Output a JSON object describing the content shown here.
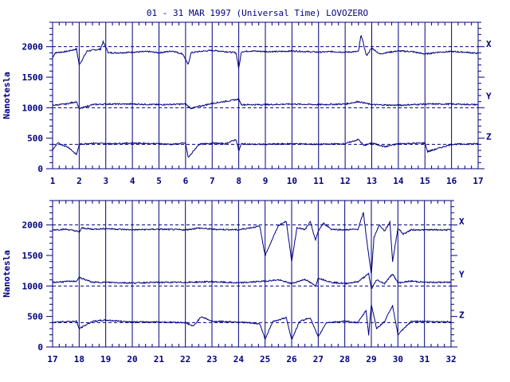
{
  "chart_data": [
    {
      "type": "line",
      "title": "01 - 31 MAR 1997 (Universal Time) LOVOZERO",
      "ylabel": "Nanotesla",
      "xlabel": "",
      "x_ticks": [
        "1",
        "2",
        "3",
        "4",
        "5",
        "6",
        "7",
        "8",
        "9",
        "10",
        "11",
        "12",
        "13",
        "14",
        "15",
        "16",
        "17"
      ],
      "xlim": [
        1,
        17
      ],
      "y_ticks": [
        "0",
        "500",
        "1000",
        "1500",
        "2000"
      ],
      "ylim": [
        0,
        2400
      ],
      "grid": "vertical lines at each day",
      "reference_lines": [
        2000,
        1000,
        400
      ],
      "series": [
        {
          "name": "X",
          "baseline": 1920,
          "x": [
            1.0,
            1.1,
            1.5,
            1.9,
            2.0,
            2.3,
            2.8,
            2.9,
            3.1,
            3.5,
            4.0,
            4.6,
            5.0,
            5.5,
            5.9,
            6.1,
            6.2,
            6.5,
            7.0,
            7.5,
            7.9,
            8.0,
            8.1,
            8.5,
            9.0,
            9.5,
            10.0,
            10.5,
            11.0,
            11.5,
            12.0,
            12.5,
            12.6,
            12.8,
            13.0,
            13.3,
            13.5,
            14.0,
            14.5,
            15.0,
            15.5,
            16.0,
            16.5,
            17.0
          ],
          "y": [
            1820,
            1900,
            1920,
            1960,
            1700,
            1930,
            1960,
            2080,
            1900,
            1900,
            1910,
            1920,
            1900,
            1930,
            1880,
            1700,
            1900,
            1920,
            1940,
            1920,
            1900,
            1640,
            1920,
            1930,
            1920,
            1920,
            1930,
            1920,
            1910,
            1920,
            1910,
            1920,
            2200,
            1850,
            1980,
            1880,
            1900,
            1930,
            1920,
            1880,
            1910,
            1920,
            1910,
            1890
          ]
        },
        {
          "name": "Y",
          "baseline": 1060,
          "x": [
            1.0,
            1.5,
            1.9,
            2.0,
            2.5,
            3.0,
            4.0,
            5.0,
            6.0,
            6.2,
            7.0,
            8.0,
            8.1,
            9.0,
            10.0,
            11.0,
            12.0,
            12.5,
            13.0,
            14.0,
            15.0,
            16.0,
            17.0
          ],
          "y": [
            1040,
            1060,
            1100,
            980,
            1050,
            1060,
            1060,
            1050,
            1060,
            990,
            1070,
            1140,
            1050,
            1050,
            1060,
            1050,
            1060,
            1100,
            1050,
            1040,
            1060,
            1060,
            1050
          ]
        },
        {
          "name": "Z",
          "baseline": 400,
          "x": [
            1.0,
            1.2,
            1.6,
            1.9,
            2.0,
            2.5,
            3.0,
            4.0,
            5.0,
            5.5,
            6.0,
            6.1,
            6.5,
            7.0,
            7.5,
            7.9,
            8.0,
            8.1,
            8.5,
            9.0,
            10.0,
            11.0,
            12.0,
            12.5,
            12.7,
            13.0,
            13.5,
            14.0,
            15.0,
            15.1,
            16.0,
            17.0
          ],
          "y": [
            310,
            420,
            350,
            230,
            400,
            420,
            410,
            420,
            410,
            400,
            420,
            180,
            400,
            420,
            410,
            480,
            290,
            410,
            400,
            400,
            410,
            400,
            410,
            480,
            380,
            420,
            360,
            410,
            420,
            280,
            400,
            410
          ]
        }
      ]
    },
    {
      "type": "line",
      "title": "",
      "ylabel": "Nanotesla",
      "xlabel": "",
      "x_ticks": [
        "17",
        "18",
        "19",
        "20",
        "21",
        "22",
        "23",
        "24",
        "25",
        "26",
        "27",
        "28",
        "29",
        "30",
        "31",
        "32"
      ],
      "xlim": [
        17,
        32
      ],
      "y_ticks": [
        "0",
        "500",
        "1000",
        "1500",
        "2000"
      ],
      "ylim": [
        0,
        2400
      ],
      "grid": "vertical lines at each day",
      "reference_lines": [
        2000,
        1000,
        400
      ],
      "series": [
        {
          "name": "X",
          "baseline": 1930,
          "x": [
            17.0,
            17.5,
            17.9,
            18.0,
            18.1,
            18.5,
            19.0,
            20.0,
            21.0,
            22.0,
            22.5,
            23.0,
            24.0,
            24.8,
            25.0,
            25.5,
            25.8,
            26.0,
            26.2,
            26.5,
            26.7,
            26.9,
            27.0,
            27.2,
            27.5,
            28.0,
            28.5,
            28.7,
            28.9,
            29.0,
            29.1,
            29.3,
            29.5,
            29.7,
            29.8,
            30.0,
            30.2,
            30.5,
            31.0,
            32.0
          ],
          "y": [
            1920,
            1930,
            1900,
            1880,
            1950,
            1930,
            1940,
            1920,
            1930,
            1920,
            1950,
            1930,
            1920,
            1980,
            1500,
            1990,
            2060,
            1400,
            1960,
            1920,
            2050,
            1750,
            1900,
            2030,
            1930,
            1920,
            1930,
            2200,
            1500,
            1200,
            1800,
            2000,
            1900,
            2050,
            1400,
            1950,
            1850,
            1920,
            1920,
            1920
          ]
        },
        {
          "name": "Y",
          "baseline": 1060,
          "x": [
            17.0,
            17.9,
            18.0,
            18.5,
            19.0,
            20.0,
            21.0,
            22.0,
            23.0,
            24.0,
            25.0,
            25.5,
            26.0,
            26.5,
            26.9,
            27.0,
            27.5,
            28.0,
            28.5,
            28.9,
            29.0,
            29.2,
            29.5,
            29.8,
            30.0,
            30.5,
            31.0,
            32.0
          ],
          "y": [
            1060,
            1080,
            1140,
            1060,
            1060,
            1050,
            1060,
            1060,
            1070,
            1050,
            1080,
            1100,
            1040,
            1110,
            1000,
            1130,
            1060,
            1040,
            1070,
            1200,
            950,
            1100,
            1040,
            1200,
            1050,
            1080,
            1060,
            1060
          ]
        },
        {
          "name": "Z",
          "baseline": 400,
          "x": [
            17.0,
            17.9,
            18.0,
            18.5,
            19.0,
            20.0,
            21.0,
            22.0,
            22.3,
            22.6,
            23.0,
            24.0,
            24.8,
            25.0,
            25.3,
            25.8,
            26.0,
            26.3,
            26.7,
            27.0,
            27.3,
            28.0,
            28.5,
            28.8,
            28.9,
            29.0,
            29.2,
            29.5,
            29.8,
            30.0,
            30.5,
            31.0,
            32.0
          ],
          "y": [
            410,
            420,
            300,
            420,
            440,
            410,
            410,
            400,
            340,
            500,
            420,
            410,
            380,
            130,
            420,
            480,
            120,
            420,
            480,
            160,
            400,
            420,
            400,
            600,
            200,
            700,
            300,
            420,
            680,
            200,
            420,
            420,
            410
          ]
        }
      ]
    }
  ]
}
